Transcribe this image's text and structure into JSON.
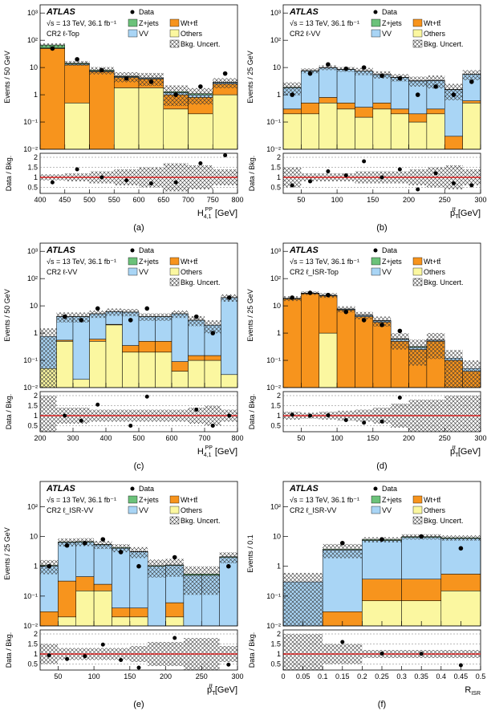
{
  "chart_data": [
    {
      "type": "histogram",
      "panel_label": "(a)",
      "experiment": "ATLAS",
      "energy_label": "√s = 13 TeV, 36.1 fb⁻¹",
      "region": "CR2 ℓ-Top",
      "ylabel": "Events / 50 GeV",
      "xlabel": {
        "base": "H",
        "sub": "4,1",
        "sup": "PP",
        "unit": "[GeV]"
      },
      "bins": [
        400,
        450,
        500,
        550,
        600,
        650,
        700,
        750,
        800
      ],
      "xlim": [
        400,
        800
      ],
      "xticks": [
        400,
        450,
        500,
        550,
        600,
        650,
        700,
        750,
        800
      ],
      "yscale": "log",
      "ylim": [
        0.01,
        2000
      ],
      "yticks": [
        {
          "value": 0.01,
          "label": "10⁻²"
        },
        {
          "value": 0.1,
          "label": "10⁻¹"
        },
        1,
        10,
        {
          "value": 100,
          "label": "10²"
        },
        {
          "value": 1000,
          "label": "10³"
        }
      ],
      "series": [
        {
          "name": "Others",
          "color": "#fbf7a0",
          "values": [
            0,
            0.5,
            0,
            1.8,
            1.8,
            0.3,
            0.2,
            1
          ]
        },
        {
          "name": "Wt+tt̄",
          "color": "#f7941d",
          "values": [
            50,
            12,
            7,
            2.5,
            2,
            0.7,
            0.6,
            1.5
          ]
        },
        {
          "name": "VV",
          "color": "#a9d5f5",
          "values": [
            2,
            1,
            0.5,
            0.3,
            0.3,
            0.2,
            0.2,
            0.3
          ]
        },
        {
          "name": "Z+jets",
          "color": "#6cc27a",
          "values": [
            15,
            1,
            0.5,
            0.2,
            0.1,
            0.1,
            0.1,
            0.1
          ]
        }
      ],
      "data": {
        "name": "Data",
        "values": [
          50,
          20,
          8,
          4,
          3,
          1,
          2,
          6
        ]
      },
      "uncertainty": {
        "name": "Bkg. Uncert.",
        "values": [
          0.15,
          0.2,
          0.3,
          0.4,
          0.5,
          0.7,
          0.6,
          0.4
        ]
      },
      "ratio": {
        "ylabel": "Data / Bkg.",
        "ylim": [
          0.2,
          2.2
        ],
        "yticks": [
          0.5,
          1,
          1.5,
          2
        ],
        "reference": 1,
        "values": [
          0.75,
          1.4,
          1.0,
          0.85,
          0.7,
          0.75,
          1.7,
          2.1
        ]
      }
    },
    {
      "type": "histogram",
      "panel_label": "(b)",
      "experiment": "ATLAS",
      "energy_label": "√s = 13 TeV, 36.1 fb⁻¹",
      "region": "CR2 ℓ-VV",
      "ylabel": "Events / 25 GeV",
      "xlabel": {
        "base": "p",
        "sub": "T",
        "sup": "ℓℓ",
        "unit": "[GeV]"
      },
      "bins": [
        25,
        50,
        75,
        100,
        125,
        150,
        175,
        200,
        225,
        250,
        275,
        300
      ],
      "xlim": [
        25,
        300
      ],
      "xticks": [
        50,
        100,
        150,
        200,
        250,
        300
      ],
      "yscale": "log",
      "ylim": [
        0.01,
        2000
      ],
      "yticks": [
        {
          "value": 0.01,
          "label": "10⁻²"
        },
        {
          "value": 0.1,
          "label": "10⁻¹"
        },
        1,
        10,
        {
          "value": 100,
          "label": "10²"
        },
        {
          "value": 1000,
          "label": "10³"
        }
      ],
      "series": [
        {
          "name": "Others",
          "color": "#fbf7a0",
          "values": [
            0.2,
            0.2,
            0.5,
            0.3,
            0.15,
            0.3,
            0.2,
            0.1,
            0.2,
            0,
            0.5
          ]
        },
        {
          "name": "Wt+tt̄",
          "color": "#f7941d",
          "values": [
            0.1,
            0.3,
            0.3,
            0.2,
            0.2,
            0.2,
            0.1,
            0.1,
            0.1,
            0.03,
            0.1
          ]
        },
        {
          "name": "VV",
          "color": "#a9d5f5",
          "values": [
            1.5,
            7,
            9,
            8,
            7,
            5,
            4,
            3,
            3,
            1.5,
            5
          ]
        },
        {
          "name": "Z+jets",
          "color": "#6cc27a",
          "values": [
            0.1,
            0.2,
            0.2,
            0.2,
            0.1,
            0.1,
            0.1,
            0.1,
            0.1,
            0.05,
            0.1
          ]
        }
      ],
      "data": {
        "name": "Data",
        "values": [
          1,
          6,
          13,
          9,
          10,
          5,
          4,
          1,
          2,
          1,
          3
        ]
      },
      "uncertainty": {
        "name": "Bkg. Uncert.",
        "values": [
          0.5,
          0.2,
          0.2,
          0.2,
          0.3,
          0.3,
          0.3,
          0.4,
          0.5,
          0.6,
          0.4
        ]
      },
      "ratio": {
        "ylabel": "Data / Bkg.",
        "ylim": [
          0.2,
          2.2
        ],
        "yticks": [
          0.5,
          1,
          1.5,
          2
        ],
        "reference": 1,
        "values": [
          0.6,
          0.8,
          1.3,
          1.1,
          1.8,
          1.0,
          1.4,
          0.4,
          1.2,
          0.7,
          0.6
        ]
      }
    },
    {
      "type": "histogram",
      "panel_label": "(c)",
      "experiment": "ATLAS",
      "energy_label": "√s = 13 TeV, 36.1 fb⁻¹",
      "region": "CR2 ℓ-VV",
      "ylabel": "Events / 50 GeV",
      "xlabel": {
        "base": "H",
        "sub": "4,1",
        "sup": "PP",
        "unit": "[GeV]"
      },
      "bins": [
        200,
        250,
        300,
        350,
        400,
        450,
        500,
        550,
        600,
        650,
        700,
        750,
        800
      ],
      "xlim": [
        200,
        800
      ],
      "xticks": [
        200,
        300,
        400,
        500,
        600,
        700,
        800
      ],
      "yscale": "log",
      "ylim": [
        0.01,
        2000
      ],
      "yticks": [
        {
          "value": 0.01,
          "label": "10⁻²"
        },
        {
          "value": 0.1,
          "label": "10⁻¹"
        },
        1,
        10,
        {
          "value": 100,
          "label": "10²"
        },
        {
          "value": 1000,
          "label": "10³"
        }
      ],
      "series": [
        {
          "name": "Others",
          "color": "#fbf7a0",
          "values": [
            0.05,
            0.5,
            0.02,
            0.5,
            2,
            0.2,
            0.2,
            0.2,
            0.04,
            0.1,
            0.1,
            0.03
          ]
        },
        {
          "name": "Wt+tt̄",
          "color": "#f7941d",
          "values": [
            0,
            0.05,
            0,
            0.1,
            0.1,
            0.15,
            0.3,
            0.3,
            0.05,
            0.05,
            0.05,
            0
          ]
        },
        {
          "name": "VV",
          "color": "#a9d5f5",
          "values": [
            0.7,
            3.5,
            4,
            4.5,
            4,
            5.5,
            3.5,
            3.5,
            5,
            2.8,
            1.8,
            20
          ]
        },
        {
          "name": "Z+jets",
          "color": "#6cc27a",
          "values": [
            0,
            0.05,
            0.05,
            0.05,
            0.05,
            0.05,
            0.05,
            0.05,
            0.05,
            0.05,
            0.02,
            0.2
          ]
        }
      ],
      "data": {
        "name": "Data",
        "values": [
          null,
          4,
          3,
          8,
          null,
          3,
          8,
          null,
          null,
          4,
          1,
          20
        ]
      },
      "uncertainty": {
        "name": "Bkg. Uncert.",
        "values": [
          1,
          0.4,
          0.4,
          0.3,
          0.3,
          0.3,
          0.3,
          0.3,
          0.3,
          0.4,
          0.5,
          0.3
        ]
      },
      "ratio": {
        "ylabel": "Data / Bkg.",
        "ylim": [
          0.2,
          2.2
        ],
        "yticks": [
          0.5,
          1,
          1.5,
          2
        ],
        "reference": 1,
        "values": [
          null,
          1.0,
          0.75,
          1.55,
          null,
          0.5,
          1.95,
          null,
          null,
          1.3,
          0.5,
          1.0
        ]
      }
    },
    {
      "type": "histogram",
      "panel_label": "(d)",
      "experiment": "ATLAS",
      "energy_label": "√s = 13 TeV, 36.1 fb⁻¹",
      "region": "CR2 ℓ_ISR-Top",
      "ylabel": "Events / 25 GeV",
      "xlabel": {
        "base": "p",
        "sub": "T",
        "sup": "ℓℓ",
        "unit": "[GeV]"
      },
      "bins": [
        25,
        50,
        75,
        100,
        125,
        150,
        175,
        200,
        225,
        250,
        275,
        300
      ],
      "xlim": [
        25,
        300
      ],
      "xticks": [
        50,
        100,
        150,
        200,
        250,
        300
      ],
      "yscale": "log",
      "ylim": [
        0.01,
        2000
      ],
      "yticks": [
        {
          "value": 0.01,
          "label": "10⁻²"
        },
        {
          "value": 0.1,
          "label": "10⁻¹"
        },
        1,
        10,
        {
          "value": 100,
          "label": "10²"
        },
        {
          "value": 1000,
          "label": "10³"
        }
      ],
      "series": [
        {
          "name": "Others",
          "color": "#fbf7a0",
          "values": [
            0,
            0,
            1,
            0,
            0,
            0,
            0,
            0,
            0,
            0,
            0
          ]
        },
        {
          "name": "Wt+tt̄",
          "color": "#f7941d",
          "values": [
            18,
            28,
            22,
            7,
            4,
            2.5,
            0.5,
            0.25,
            0.5,
            0.1,
            0.04
          ]
        },
        {
          "name": "VV",
          "color": "#a9d5f5",
          "values": [
            0.5,
            1,
            1,
            0.5,
            0.5,
            0.3,
            0.1,
            0.05,
            0.05,
            0.02,
            0.01
          ]
        },
        {
          "name": "Z+jets",
          "color": "#6cc27a",
          "values": [
            0.3,
            0.5,
            0.5,
            0.2,
            0.1,
            0.1,
            0.02,
            0.02,
            0.01,
            0,
            0
          ]
        }
      ],
      "data": {
        "name": "Data",
        "values": [
          20,
          30,
          25,
          6,
          3,
          2,
          1.2,
          null,
          null,
          null,
          null
        ]
      },
      "uncertainty": {
        "name": "Bkg. Uncert.",
        "values": [
          0.2,
          0.15,
          0.2,
          0.25,
          0.3,
          0.4,
          0.6,
          0.8,
          0.8,
          1,
          1
        ]
      },
      "ratio": {
        "ylabel": "Data / Bkg.",
        "ylim": [
          0.2,
          2.2
        ],
        "yticks": [
          0.5,
          1,
          1.5,
          2
        ],
        "reference": 1,
        "values": [
          1.05,
          1.0,
          1.02,
          0.78,
          0.65,
          0.71,
          1.9,
          null,
          null,
          null,
          null
        ]
      }
    },
    {
      "type": "histogram",
      "panel_label": "(e)",
      "experiment": "ATLAS",
      "energy_label": "√s = 13 TeV, 36.1 fb⁻¹",
      "region": "CR2 ℓ_ISR-VV",
      "ylabel": "Events / 25 GeV",
      "xlabel": {
        "base": "p",
        "sub": "T",
        "sup": "ℓℓ",
        "unit": "[GeV]"
      },
      "bins": [
        25,
        50,
        75,
        100,
        125,
        150,
        175,
        200,
        225,
        250,
        275,
        300
      ],
      "xlim": [
        25,
        300
      ],
      "xticks": [
        50,
        100,
        150,
        200,
        250,
        300
      ],
      "yscale": "log",
      "ylim": [
        0.01,
        700
      ],
      "yticks": [
        {
          "value": 0.01,
          "label": "10⁻²"
        },
        {
          "value": 0.1,
          "label": "10⁻¹"
        },
        1,
        10,
        {
          "value": 100,
          "label": "10²"
        }
      ],
      "series": [
        {
          "name": "Others",
          "color": "#fbf7a0",
          "values": [
            0,
            0.02,
            0.15,
            0.15,
            0.02,
            0.02,
            0,
            0.02,
            0,
            0,
            0
          ]
        },
        {
          "name": "Wt+tt̄",
          "color": "#f7941d",
          "values": [
            0.03,
            0.3,
            0.3,
            0.1,
            0.02,
            0.02,
            0,
            0.04,
            0,
            0,
            0
          ]
        },
        {
          "name": "VV",
          "color": "#a9d5f5",
          "values": [
            1,
            6,
            6,
            5,
            4,
            3,
            1,
            1,
            0.5,
            0.5,
            2
          ]
        },
        {
          "name": "Z+jets",
          "color": "#6cc27a",
          "values": [
            0.05,
            0.3,
            0.3,
            0.2,
            0.2,
            0.1,
            0.05,
            0.05,
            0.05,
            0.05,
            0.1
          ]
        }
      ],
      "data": {
        "name": "Data",
        "values": [
          1,
          5,
          6,
          8,
          3,
          1,
          null,
          2,
          null,
          null,
          1
        ]
      },
      "uncertainty": {
        "name": "Bkg. Uncert.",
        "values": [
          0.5,
          0.3,
          0.3,
          0.3,
          0.3,
          0.4,
          0.6,
          0.6,
          0.8,
          0.8,
          0.4
        ]
      },
      "ratio": {
        "ylabel": "Data / Bkg.",
        "ylim": [
          0.2,
          2.2
        ],
        "yticks": [
          0.5,
          1,
          1.5,
          2
        ],
        "reference": 1,
        "values": [
          0.93,
          0.75,
          0.89,
          1.47,
          0.7,
          0.32,
          null,
          1.8,
          null,
          null,
          0.47
        ]
      }
    },
    {
      "type": "histogram",
      "panel_label": "(f)",
      "experiment": "ATLAS",
      "energy_label": "√s = 13 TeV, 36.1 fb⁻¹",
      "region": "CR2 ℓ_ISR-VV",
      "ylabel": "Events / 0.1",
      "xlabel": {
        "base": "R",
        "sub": "ISR"
      },
      "bins": [
        0,
        0.1,
        0.2,
        0.3,
        0.4,
        0.5
      ],
      "xlim": [
        0,
        0.5
      ],
      "xticks": [
        0,
        0.05,
        0.1,
        0.15,
        0.2,
        0.25,
        0.3,
        0.35,
        0.4,
        0.45,
        0.5
      ],
      "yscale": "log",
      "ylim": [
        0.01,
        700
      ],
      "yticks": [
        {
          "value": 0.01,
          "label": "10⁻²"
        },
        {
          "value": 0.1,
          "label": "10⁻¹"
        },
        1,
        10,
        {
          "value": 100,
          "label": "10²"
        }
      ],
      "series": [
        {
          "name": "Others",
          "color": "#fbf7a0",
          "values": [
            0,
            0,
            0.07,
            0.07,
            0.15
          ]
        },
        {
          "name": "Wt+tt̄",
          "color": "#f7941d",
          "values": [
            0,
            0.03,
            0.3,
            0.3,
            0.4
          ]
        },
        {
          "name": "VV",
          "color": "#a9d5f5",
          "values": [
            0.3,
            3.5,
            7,
            9,
            8
          ]
        },
        {
          "name": "Z+jets",
          "color": "#6cc27a",
          "values": [
            0,
            0.2,
            0.5,
            0.5,
            0.5
          ]
        }
      ],
      "data": {
        "name": "Data",
        "values": [
          null,
          6,
          8,
          10,
          4
        ]
      },
      "uncertainty": {
        "name": "Bkg. Uncert.",
        "values": [
          1,
          0.5,
          0.2,
          0.2,
          0.2
        ]
      },
      "ratio": {
        "ylabel": "Data / Bkg.",
        "ylim": [
          0.2,
          2.2
        ],
        "yticks": [
          0.5,
          1,
          1.5,
          2
        ],
        "reference": 1,
        "values": [
          null,
          1.6,
          1.02,
          1.01,
          0.44
        ]
      }
    }
  ]
}
